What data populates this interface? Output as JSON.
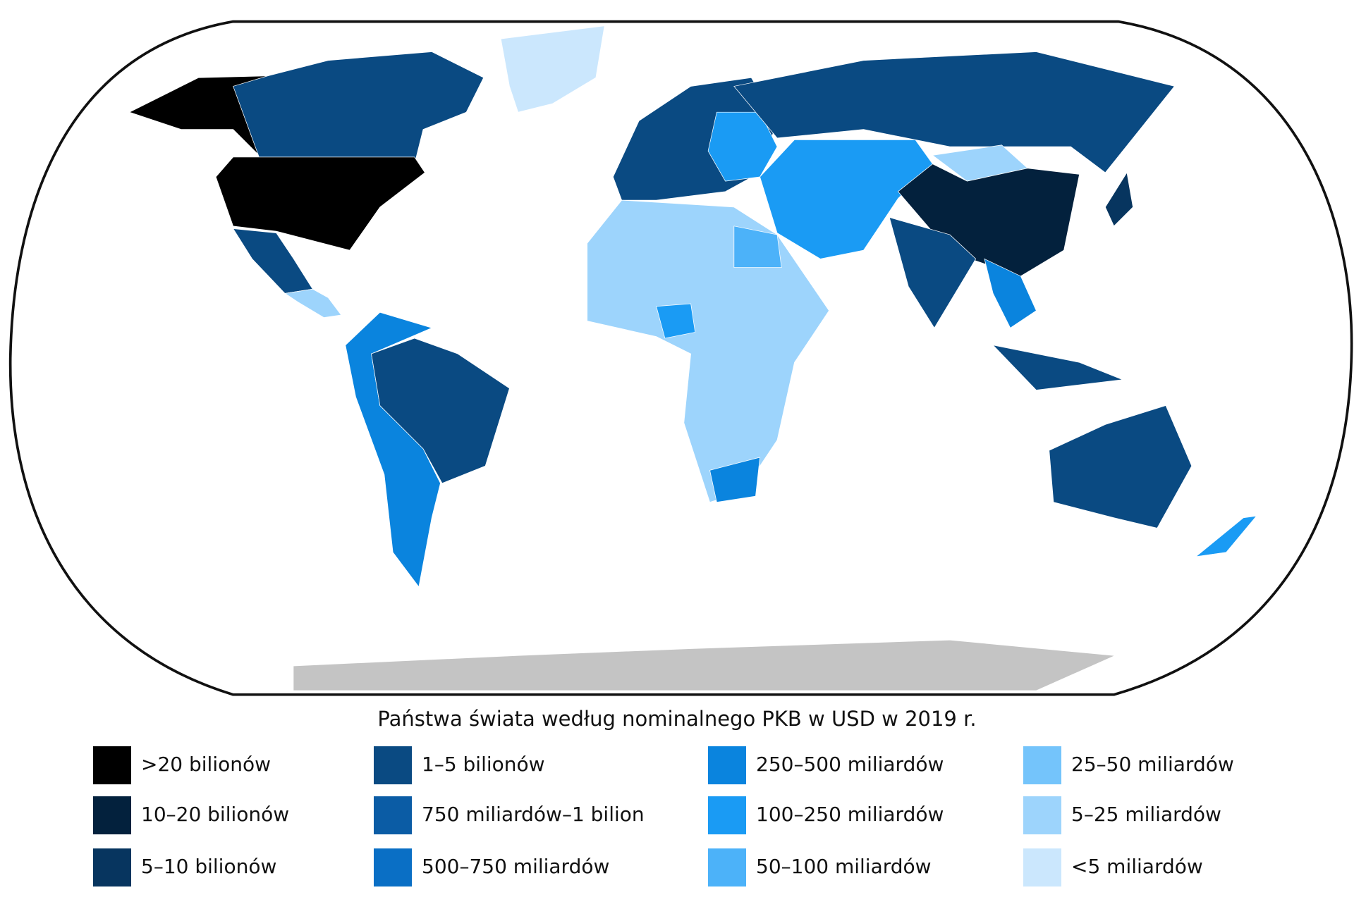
{
  "title": "Państwa świata według nominalnego PKB w USD w 2019 r.",
  "legend": [
    {
      "label": ">20 bilionów",
      "color": "#000000"
    },
    {
      "label": "10–20 bilionów",
      "color": "#03213d"
    },
    {
      "label": "5–10 bilionów",
      "color": "#07355f"
    },
    {
      "label": "1–5 bilionów",
      "color": "#0a4a82"
    },
    {
      "label": "750 miliardów–1 bilion",
      "color": "#0b5ca5"
    },
    {
      "label": "500–750 miliardów",
      "color": "#0a6fc5"
    },
    {
      "label": "250–500 miliardów",
      "color": "#0a84de"
    },
    {
      "label": "100–250 miliardów",
      "color": "#1a9bf4"
    },
    {
      "label": "50–100 miliardów",
      "color": "#4cb2f9"
    },
    {
      "label": "25–50 miliardów",
      "color": "#74c4fb"
    },
    {
      "label": "5–25 miliardów",
      "color": "#9dd4fc"
    },
    {
      "label": "<5 miliardów",
      "color": "#cbe7fd"
    }
  ]
}
